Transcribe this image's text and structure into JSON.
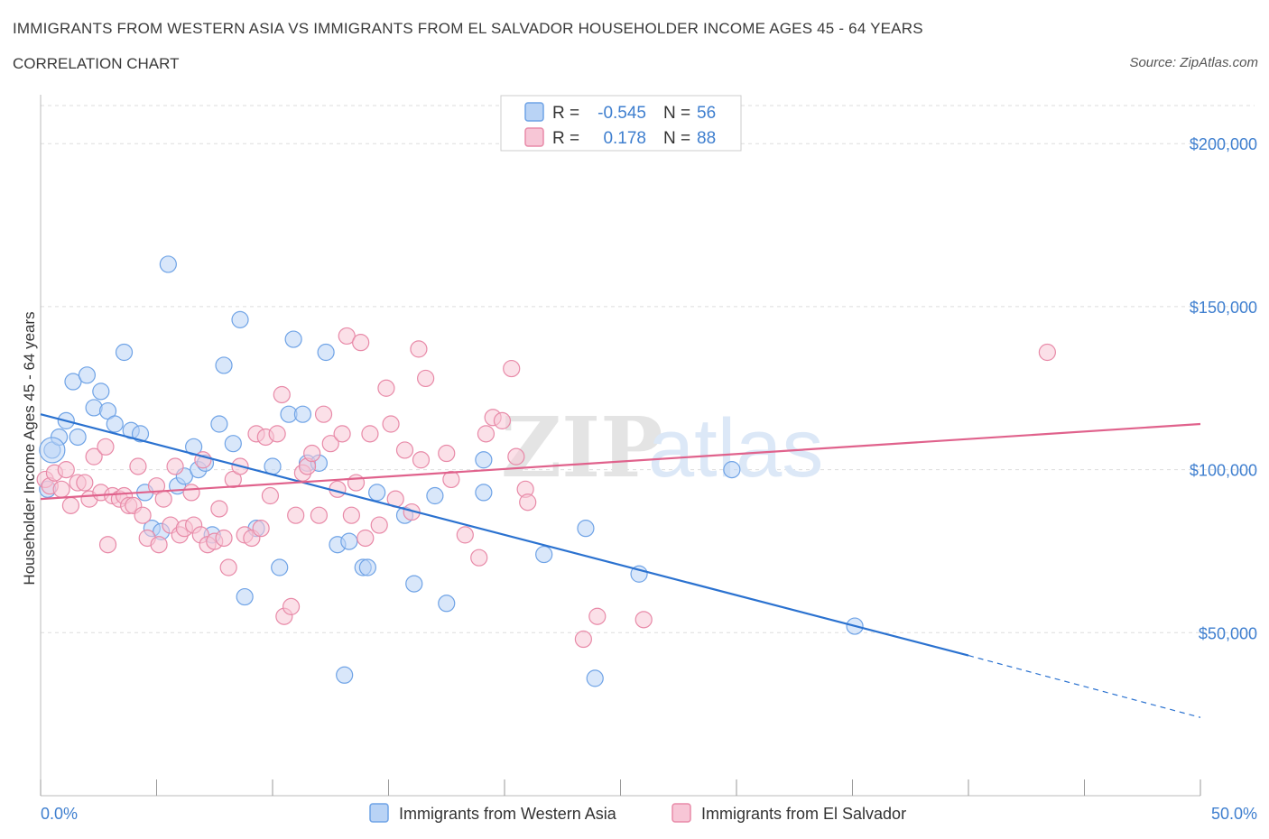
{
  "header": {
    "title": "IMMIGRANTS FROM WESTERN ASIA VS IMMIGRANTS FROM EL SALVADOR HOUSEHOLDER INCOME AGES 45 - 64 YEARS",
    "subtitle": "CORRELATION CHART",
    "source": "Source: ZipAtlas.com"
  },
  "watermark": {
    "zip": "ZIP",
    "atlas": "atlas"
  },
  "colors": {
    "blue": "#6fa3e6",
    "blue_fill": "#b9d3f5",
    "blue_line": "#2b72d0",
    "pink": "#e88aa8",
    "pink_fill": "#f7c6d6",
    "pink_line": "#e0628c",
    "grid": "#dddddd",
    "axis_label": "#3f7fcf"
  },
  "legend": {
    "rows": [
      {
        "r_label": "R =",
        "r_value": "-0.545",
        "n_label": "N =",
        "n_value": "56"
      },
      {
        "r_label": "R =",
        "r_value": "0.178",
        "n_label": "N =",
        "n_value": "88"
      }
    ]
  },
  "chart_data": {
    "type": "scatter",
    "title": "IMMIGRANTS FROM WESTERN ASIA VS IMMIGRANTS FROM EL SALVADOR HOUSEHOLDER INCOME AGES 45 - 64 YEARS",
    "xlabel": "",
    "ylabel": "Householder Income Ages 45 - 64 years",
    "xlim": [
      0,
      50
    ],
    "ylim": [
      0,
      215000
    ],
    "x_tick_labels": [
      "0.0%",
      "50.0%"
    ],
    "y_ticks": [
      50000,
      100000,
      150000,
      200000
    ],
    "y_tick_labels": [
      "$50,000",
      "$100,000",
      "$150,000",
      "$200,000"
    ],
    "grid": true,
    "legend_position": "top-center",
    "series": [
      {
        "name": "Immigrants from Western Asia",
        "color": "blue",
        "trend": {
          "x0": 0,
          "y0": 117000,
          "x1": 40,
          "y1": 43000,
          "dash_to_x": 50,
          "dash_to_y": 24000
        },
        "points": [
          [
            0.3,
            94000
          ],
          [
            0.5,
            106000
          ],
          [
            0.8,
            110000
          ],
          [
            1.1,
            115000
          ],
          [
            1.4,
            127000
          ],
          [
            1.6,
            110000
          ],
          [
            2.0,
            129000
          ],
          [
            2.3,
            119000
          ],
          [
            2.6,
            124000
          ],
          [
            2.9,
            118000
          ],
          [
            3.2,
            114000
          ],
          [
            3.6,
            136000
          ],
          [
            3.9,
            112000
          ],
          [
            4.3,
            111000
          ],
          [
            4.5,
            93000
          ],
          [
            4.8,
            82000
          ],
          [
            5.2,
            81000
          ],
          [
            5.5,
            163000
          ],
          [
            5.9,
            95000
          ],
          [
            6.2,
            98000
          ],
          [
            6.6,
            107000
          ],
          [
            6.8,
            100000
          ],
          [
            7.1,
            102000
          ],
          [
            7.4,
            80000
          ],
          [
            7.7,
            114000
          ],
          [
            7.9,
            132000
          ],
          [
            8.3,
            108000
          ],
          [
            8.6,
            146000
          ],
          [
            8.8,
            61000
          ],
          [
            9.3,
            82000
          ],
          [
            10.0,
            101000
          ],
          [
            10.3,
            70000
          ],
          [
            10.7,
            117000
          ],
          [
            10.9,
            140000
          ],
          [
            11.3,
            117000
          ],
          [
            11.5,
            102000
          ],
          [
            12.0,
            102000
          ],
          [
            12.3,
            136000
          ],
          [
            12.8,
            77000
          ],
          [
            13.3,
            78000
          ],
          [
            13.1,
            37000
          ],
          [
            13.9,
            70000
          ],
          [
            14.1,
            70000
          ],
          [
            14.5,
            93000
          ],
          [
            15.7,
            86000
          ],
          [
            16.1,
            65000
          ],
          [
            17.0,
            92000
          ],
          [
            17.5,
            59000
          ],
          [
            19.1,
            103000
          ],
          [
            19.1,
            93000
          ],
          [
            21.7,
            74000
          ],
          [
            23.5,
            82000
          ],
          [
            23.9,
            36000
          ],
          [
            25.8,
            68000
          ],
          [
            29.8,
            100000
          ],
          [
            35.1,
            52000
          ]
        ]
      },
      {
        "name": "Immigrants from El Salvador",
        "color": "pink",
        "trend": {
          "x0": 0,
          "y0": 91000,
          "x1": 50,
          "y1": 114000
        },
        "points": [
          [
            0.2,
            97000
          ],
          [
            0.4,
            95000
          ],
          [
            0.6,
            99000
          ],
          [
            0.9,
            94000
          ],
          [
            1.1,
            100000
          ],
          [
            1.3,
            89000
          ],
          [
            1.6,
            96000
          ],
          [
            1.9,
            96000
          ],
          [
            2.1,
            91000
          ],
          [
            2.3,
            104000
          ],
          [
            2.6,
            93000
          ],
          [
            2.8,
            107000
          ],
          [
            2.9,
            77000
          ],
          [
            3.1,
            92000
          ],
          [
            3.4,
            91000
          ],
          [
            3.6,
            92000
          ],
          [
            3.8,
            89000
          ],
          [
            4.0,
            89000
          ],
          [
            4.2,
            101000
          ],
          [
            4.4,
            86000
          ],
          [
            4.6,
            79000
          ],
          [
            5.0,
            95000
          ],
          [
            5.1,
            77000
          ],
          [
            5.3,
            91000
          ],
          [
            5.6,
            83000
          ],
          [
            5.8,
            101000
          ],
          [
            6.0,
            80000
          ],
          [
            6.2,
            82000
          ],
          [
            6.5,
            93000
          ],
          [
            6.6,
            83000
          ],
          [
            6.9,
            80000
          ],
          [
            7.0,
            103000
          ],
          [
            7.2,
            77000
          ],
          [
            7.5,
            78000
          ],
          [
            7.7,
            88000
          ],
          [
            7.9,
            79000
          ],
          [
            8.1,
            70000
          ],
          [
            8.3,
            97000
          ],
          [
            8.6,
            101000
          ],
          [
            8.8,
            80000
          ],
          [
            9.1,
            79000
          ],
          [
            9.3,
            111000
          ],
          [
            9.5,
            82000
          ],
          [
            9.7,
            110000
          ],
          [
            9.9,
            92000
          ],
          [
            10.2,
            111000
          ],
          [
            10.4,
            123000
          ],
          [
            10.5,
            55000
          ],
          [
            10.8,
            58000
          ],
          [
            11.0,
            86000
          ],
          [
            11.3,
            99000
          ],
          [
            11.5,
            101000
          ],
          [
            11.7,
            105000
          ],
          [
            12.0,
            86000
          ],
          [
            12.2,
            117000
          ],
          [
            12.5,
            108000
          ],
          [
            12.8,
            94000
          ],
          [
            13.0,
            111000
          ],
          [
            13.2,
            141000
          ],
          [
            13.4,
            86000
          ],
          [
            13.6,
            96000
          ],
          [
            13.8,
            139000
          ],
          [
            14.0,
            79000
          ],
          [
            14.2,
            111000
          ],
          [
            14.6,
            83000
          ],
          [
            14.9,
            125000
          ],
          [
            15.1,
            114000
          ],
          [
            15.3,
            91000
          ],
          [
            15.7,
            106000
          ],
          [
            16.0,
            87000
          ],
          [
            16.3,
            137000
          ],
          [
            16.4,
            103000
          ],
          [
            16.6,
            128000
          ],
          [
            17.5,
            105000
          ],
          [
            17.7,
            97000
          ],
          [
            18.3,
            80000
          ],
          [
            18.9,
            73000
          ],
          [
            19.2,
            111000
          ],
          [
            19.5,
            116000
          ],
          [
            19.9,
            115000
          ],
          [
            20.3,
            131000
          ],
          [
            20.5,
            104000
          ],
          [
            20.9,
            94000
          ],
          [
            21.0,
            90000
          ],
          [
            23.4,
            48000
          ],
          [
            24.0,
            55000
          ],
          [
            26.0,
            54000
          ],
          [
            43.4,
            136000
          ]
        ]
      }
    ]
  },
  "bottom_legend": {
    "items": [
      {
        "label": "Immigrants from Western Asia"
      },
      {
        "label": "Immigrants from El Salvador"
      }
    ]
  }
}
